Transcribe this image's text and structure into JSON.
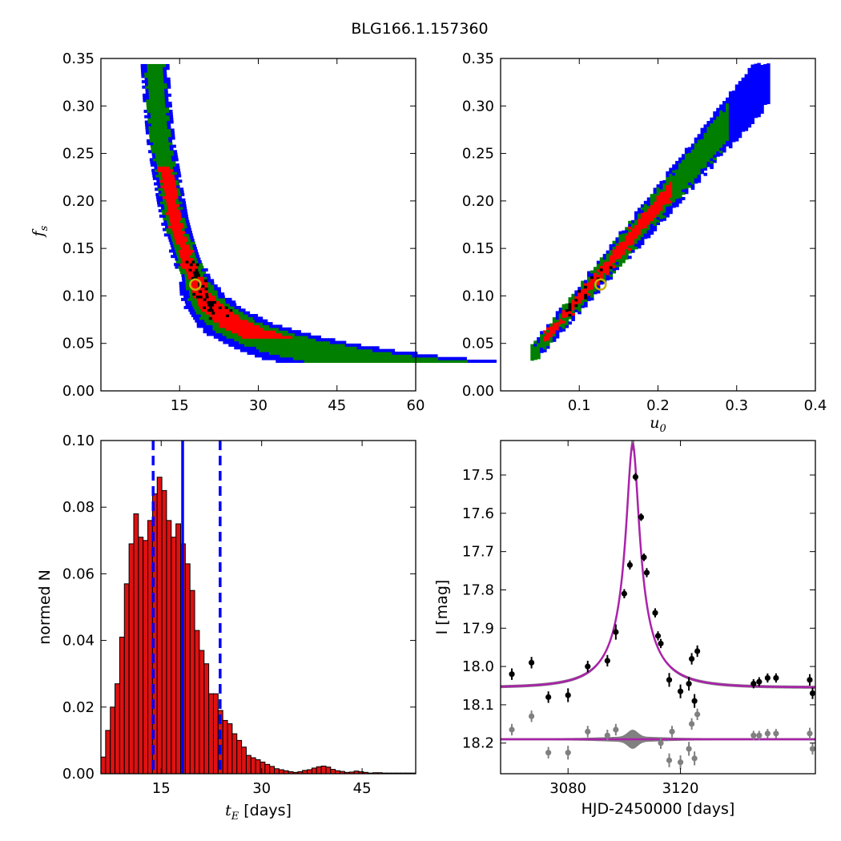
{
  "suptitle": "BLG166.1.157360",
  "colors": {
    "blue": "#0000ff",
    "green": "#007f00",
    "red": "#ff0000",
    "black": "#000000",
    "histogram_bar": "#dd1111",
    "marker_ring": "#c8b400",
    "model_gray": "#808080",
    "model_magenta": "#aa22aa"
  },
  "chart_data": [
    {
      "id": "te_fs",
      "type": "heatmap",
      "title": "",
      "xlabel": "",
      "ylabel": "f_s",
      "ylabel_main": "f",
      "ylabel_sub": "s",
      "xlim": [
        0,
        60
      ],
      "ylim": [
        0.0,
        0.35
      ],
      "xticks": [
        "15",
        "30",
        "45",
        "60"
      ],
      "xtick_values": [
        15,
        30,
        45,
        60
      ],
      "yticks": [
        "0.00",
        "0.05",
        "0.10",
        "0.15",
        "0.20",
        "0.25",
        "0.30",
        "0.35"
      ],
      "ytick_values": [
        0,
        0.05,
        0.1,
        0.15,
        0.2,
        0.25,
        0.3,
        0.35
      ],
      "regions": [
        "outer (blue)",
        "middle (green)",
        "inner (red)",
        "core (black)"
      ],
      "best_fit_marker": {
        "x": 18,
        "y": 0.112
      },
      "ridge_fs": [
        0.34,
        0.3,
        0.26,
        0.22,
        0.18,
        0.16,
        0.14,
        0.12,
        0.1,
        0.09,
        0.08,
        0.07,
        0.065,
        0.06,
        0.055,
        0.05,
        0.045,
        0.04,
        0.035,
        0.03
      ],
      "ridge_te": [
        10.0,
        10.5,
        11.2,
        12.5,
        13.8,
        14.8,
        16.0,
        17.5,
        19.2,
        20.5,
        22.5,
        25.0,
        27.0,
        29.0,
        31.5,
        34.5,
        38.0,
        42.0,
        47.0,
        54.0
      ]
    },
    {
      "id": "u0_fs",
      "type": "heatmap",
      "title": "",
      "xlabel": "u_0",
      "xlabel_main": "u",
      "xlabel_sub": "0",
      "ylabel": "",
      "xlim": [
        0.0,
        0.4
      ],
      "ylim": [
        0.0,
        0.35
      ],
      "xticks": [
        "0.1",
        "0.2",
        "0.3",
        "0.4"
      ],
      "xtick_values": [
        0.1,
        0.2,
        0.3,
        0.4
      ],
      "yticks": [
        "0.00",
        "0.05",
        "0.10",
        "0.15",
        "0.20",
        "0.25",
        "0.30",
        "0.35"
      ],
      "ytick_values": [
        0,
        0.05,
        0.1,
        0.15,
        0.2,
        0.25,
        0.3,
        0.35
      ],
      "regions": [
        "outer (blue)",
        "middle (green)",
        "inner (red)",
        "core (black)"
      ],
      "best_fit_marker": {
        "x": 0.127,
        "y": 0.112
      },
      "ridge": {
        "x_start": 0.038,
        "x_end": 0.34,
        "slope": 0.98,
        "intercept": 0.0
      }
    },
    {
      "id": "te_hist",
      "type": "bar",
      "title": "",
      "xlabel": "t_E [days]",
      "xlabel_main": "t",
      "xlabel_sub": "E",
      "xlabel_rest": " [days]",
      "ylabel": "normed N",
      "xlim": [
        6,
        53
      ],
      "ylim": [
        0.0,
        0.1
      ],
      "xticks": [
        "15",
        "30",
        "45"
      ],
      "xtick_values": [
        15,
        30,
        45
      ],
      "yticks": [
        "0.00",
        "0.02",
        "0.04",
        "0.06",
        "0.08",
        "0.10"
      ],
      "ytick_values": [
        0,
        0.02,
        0.04,
        0.06,
        0.08,
        0.1
      ],
      "bin_start": 6.0,
      "bin_width": 0.7,
      "values": [
        0.005,
        0.013,
        0.02,
        0.027,
        0.041,
        0.057,
        0.069,
        0.078,
        0.071,
        0.07,
        0.076,
        0.084,
        0.089,
        0.085,
        0.076,
        0.071,
        0.075,
        0.069,
        0.063,
        0.055,
        0.043,
        0.037,
        0.033,
        0.024,
        0.024,
        0.019,
        0.016,
        0.015,
        0.012,
        0.01,
        0.008,
        0.0055,
        0.0048,
        0.0042,
        0.0035,
        0.0028,
        0.0022,
        0.0015,
        0.0012,
        0.0009,
        0.0006,
        0.0004,
        0.0006,
        0.001,
        0.0012,
        0.0017,
        0.0021,
        0.0023,
        0.002,
        0.0013,
        0.0009,
        0.0007,
        0.0004,
        0.0005,
        0.0008,
        0.0006,
        0.0004,
        0.0002,
        0.0003,
        0.0003,
        0.0002,
        0.0002,
        0.0002,
        0.0002,
        0.0002,
        0.0002,
        0.0002
      ],
      "vlines": [
        {
          "x": 13.8,
          "style": "dashed"
        },
        {
          "x": 18.2,
          "style": "solid"
        },
        {
          "x": 23.8,
          "style": "dashed"
        }
      ]
    },
    {
      "id": "lightcurve",
      "type": "scatter",
      "title": "",
      "xlabel": "HJD-2450000 [days]",
      "ylabel": "I [mag]",
      "xlim": [
        3056,
        3168
      ],
      "ylim": [
        18.28,
        17.41
      ],
      "y_inverted": true,
      "xticks": [
        "3080",
        "3120"
      ],
      "xtick_values": [
        3080,
        3120
      ],
      "yticks": [
        "17.5",
        "17.6",
        "17.7",
        "17.8",
        "17.9",
        "18.0",
        "18.1",
        "18.2"
      ],
      "ytick_values": [
        17.5,
        17.6,
        17.7,
        17.8,
        17.9,
        18.0,
        18.1,
        18.2
      ],
      "model": {
        "t0": 3103.0,
        "tE": 18.0,
        "u0": 0.127,
        "baseline": 18.055,
        "peak": 17.42
      },
      "residual_baseline": 18.19,
      "series": [
        {
          "points": [
            {
              "x": 3060,
              "y": 18.02,
              "err": 0.015
            },
            {
              "x": 3067,
              "y": 17.99,
              "err": 0.015
            },
            {
              "x": 3073,
              "y": 18.08,
              "err": 0.015
            },
            {
              "x": 3080,
              "y": 18.075,
              "err": 0.018
            },
            {
              "x": 3087,
              "y": 18.0,
              "err": 0.015
            },
            {
              "x": 3094,
              "y": 17.985,
              "err": 0.015
            },
            {
              "x": 3097,
              "y": 17.91,
              "err": 0.02
            },
            {
              "x": 3100,
              "y": 17.81,
              "err": 0.012
            },
            {
              "x": 3102,
              "y": 17.735,
              "err": 0.012
            },
            {
              "x": 3104,
              "y": 17.505,
              "err": 0.01
            },
            {
              "x": 3106,
              "y": 17.61,
              "err": 0.01
            },
            {
              "x": 3107,
              "y": 17.715,
              "err": 0.01
            },
            {
              "x": 3108,
              "y": 17.755,
              "err": 0.012
            },
            {
              "x": 3111,
              "y": 17.86,
              "err": 0.012
            },
            {
              "x": 3112,
              "y": 17.92,
              "err": 0.012
            },
            {
              "x": 3113,
              "y": 17.94,
              "err": 0.012
            },
            {
              "x": 3116,
              "y": 18.035,
              "err": 0.018
            },
            {
              "x": 3120,
              "y": 18.065,
              "err": 0.018
            },
            {
              "x": 3123,
              "y": 18.045,
              "err": 0.018
            },
            {
              "x": 3124,
              "y": 17.98,
              "err": 0.015
            },
            {
              "x": 3125,
              "y": 18.09,
              "err": 0.018
            },
            {
              "x": 3126,
              "y": 17.96,
              "err": 0.015
            },
            {
              "x": 3146,
              "y": 18.045,
              "err": 0.012
            },
            {
              "x": 3148,
              "y": 18.04,
              "err": 0.012
            },
            {
              "x": 3151,
              "y": 18.03,
              "err": 0.012
            },
            {
              "x": 3154,
              "y": 18.03,
              "err": 0.012
            },
            {
              "x": 3166,
              "y": 18.035,
              "err": 0.015
            },
            {
              "x": 3167,
              "y": 18.07,
              "err": 0.015
            }
          ]
        },
        {
          "points": [
            {
              "x": 3060,
              "y": 18.165,
              "err": 0.015
            },
            {
              "x": 3067,
              "y": 18.13,
              "err": 0.015
            },
            {
              "x": 3073,
              "y": 18.225,
              "err": 0.015
            },
            {
              "x": 3080,
              "y": 18.225,
              "err": 0.018
            },
            {
              "x": 3087,
              "y": 18.17,
              "err": 0.015
            },
            {
              "x": 3094,
              "y": 18.18,
              "err": 0.015
            },
            {
              "x": 3097,
              "y": 18.165,
              "err": 0.015
            },
            {
              "x": 3113,
              "y": 18.2,
              "err": 0.015
            },
            {
              "x": 3116,
              "y": 18.245,
              "err": 0.018
            },
            {
              "x": 3117,
              "y": 18.17,
              "err": 0.015
            },
            {
              "x": 3120,
              "y": 18.25,
              "err": 0.018
            },
            {
              "x": 3123,
              "y": 18.215,
              "err": 0.018
            },
            {
              "x": 3124,
              "y": 18.15,
              "err": 0.015
            },
            {
              "x": 3125,
              "y": 18.24,
              "err": 0.018
            },
            {
              "x": 3126,
              "y": 18.125,
              "err": 0.015
            },
            {
              "x": 3146,
              "y": 18.18,
              "err": 0.012
            },
            {
              "x": 3148,
              "y": 18.18,
              "err": 0.012
            },
            {
              "x": 3151,
              "y": 18.175,
              "err": 0.012
            },
            {
              "x": 3154,
              "y": 18.175,
              "err": 0.012
            },
            {
              "x": 3166,
              "y": 18.175,
              "err": 0.015
            },
            {
              "x": 3167,
              "y": 18.215,
              "err": 0.015
            }
          ]
        }
      ]
    }
  ]
}
